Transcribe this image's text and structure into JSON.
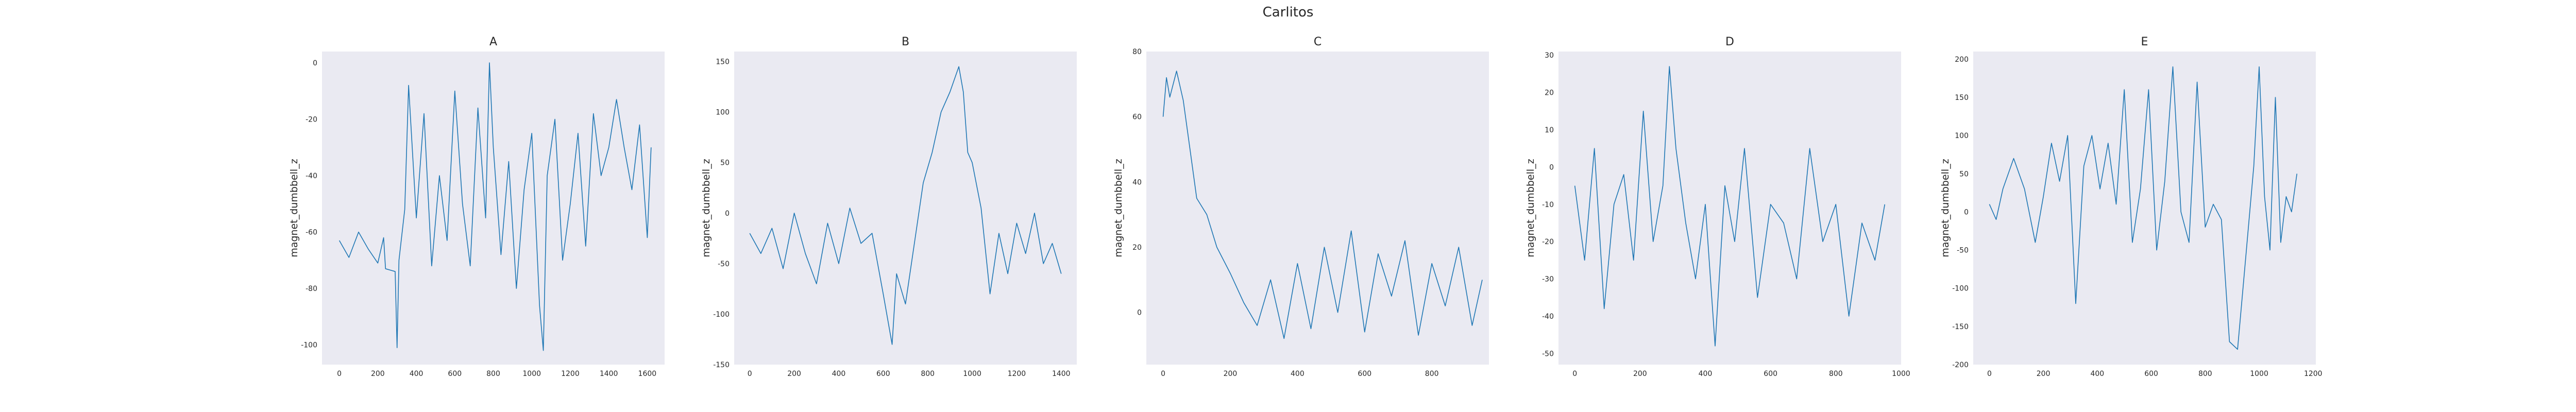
{
  "figure": {
    "title": "Carlitos",
    "background": "#ffffff",
    "axes_background": "#eaeaf2",
    "line_color": "#1f77b4"
  },
  "chart_data": [
    {
      "type": "line",
      "title": "A",
      "xlabel": "",
      "ylabel": "magnet_dumbbell_z",
      "xlim": [
        -90,
        1690
      ],
      "ylim": [
        -107,
        4
      ],
      "xticks": [
        0,
        200,
        400,
        600,
        800,
        1000,
        1200,
        1400,
        1600
      ],
      "yticks": [
        0,
        -20,
        -40,
        -60,
        -80,
        -100
      ],
      "grid": false,
      "x": [
        0,
        50,
        100,
        150,
        200,
        230,
        240,
        290,
        300,
        310,
        340,
        360,
        400,
        440,
        480,
        520,
        560,
        600,
        640,
        680,
        720,
        760,
        780,
        800,
        840,
        880,
        920,
        960,
        1000,
        1040,
        1060,
        1080,
        1120,
        1160,
        1200,
        1240,
        1280,
        1320,
        1360,
        1400,
        1440,
        1480,
        1520,
        1560,
        1600,
        1620
      ],
      "y": [
        -63,
        -69,
        -60,
        -66,
        -71,
        -62,
        -73,
        -74,
        -101,
        -70,
        -52,
        -8,
        -55,
        -18,
        -72,
        -40,
        -63,
        -10,
        -50,
        -72,
        -16,
        -55,
        0,
        -30,
        -68,
        -35,
        -80,
        -45,
        -25,
        -86,
        -102,
        -40,
        -20,
        -70,
        -50,
        -25,
        -65,
        -18,
        -40,
        -30,
        -13,
        -30,
        -45,
        -22,
        -62,
        -30
      ]
    },
    {
      "type": "line",
      "title": "B",
      "xlabel": "",
      "ylabel": "magnet_dumbbell_z",
      "xlim": [
        -70,
        1470
      ],
      "ylim": [
        -150,
        160
      ],
      "xticks": [
        0,
        200,
        400,
        600,
        800,
        1000,
        1200,
        1400
      ],
      "yticks": [
        150,
        100,
        50,
        0,
        -50,
        -100,
        -150
      ],
      "grid": false,
      "x": [
        0,
        50,
        100,
        150,
        200,
        250,
        300,
        350,
        400,
        450,
        500,
        550,
        600,
        640,
        660,
        700,
        740,
        780,
        820,
        860,
        900,
        940,
        960,
        980,
        1000,
        1040,
        1080,
        1120,
        1160,
        1200,
        1240,
        1280,
        1320,
        1360,
        1400
      ],
      "y": [
        -20,
        -40,
        -15,
        -55,
        0,
        -40,
        -70,
        -10,
        -50,
        5,
        -30,
        -20,
        -80,
        -130,
        -60,
        -90,
        -30,
        30,
        60,
        100,
        120,
        145,
        120,
        60,
        50,
        5,
        -80,
        -20,
        -60,
        -10,
        -40,
        0,
        -50,
        -30,
        -60
      ]
    },
    {
      "type": "line",
      "title": "C",
      "xlabel": "",
      "ylabel": "magnet_dumbbell_z",
      "xlim": [
        -50,
        970
      ],
      "ylim": [
        -16,
        80
      ],
      "xticks": [
        0,
        200,
        400,
        600,
        800
      ],
      "yticks": [
        80,
        60,
        40,
        20,
        0
      ],
      "grid": false,
      "x": [
        0,
        10,
        20,
        40,
        60,
        80,
        100,
        130,
        160,
        200,
        240,
        280,
        320,
        360,
        400,
        440,
        480,
        520,
        560,
        600,
        640,
        680,
        720,
        760,
        800,
        840,
        880,
        920,
        950
      ],
      "y": [
        60,
        72,
        66,
        74,
        65,
        50,
        35,
        30,
        20,
        12,
        3,
        -4,
        10,
        -8,
        15,
        -5,
        20,
        0,
        25,
        -6,
        18,
        5,
        22,
        -7,
        15,
        2,
        20,
        -4,
        10
      ]
    },
    {
      "type": "line",
      "title": "D",
      "xlabel": "",
      "ylabel": "magnet_dumbbell_z",
      "xlim": [
        -50,
        1000
      ],
      "ylim": [
        -53,
        31
      ],
      "xticks": [
        0,
        200,
        400,
        600,
        800,
        1000
      ],
      "yticks": [
        30,
        20,
        10,
        0,
        -10,
        -20,
        -30,
        -40,
        -50
      ],
      "grid": false,
      "x": [
        0,
        30,
        60,
        90,
        120,
        150,
        180,
        210,
        240,
        270,
        290,
        310,
        340,
        370,
        400,
        430,
        460,
        490,
        520,
        560,
        600,
        640,
        680,
        720,
        760,
        800,
        840,
        880,
        920,
        950
      ],
      "y": [
        -5,
        -25,
        5,
        -38,
        -10,
        -2,
        -25,
        15,
        -20,
        -5,
        27,
        5,
        -15,
        -30,
        -10,
        -48,
        -5,
        -20,
        5,
        -35,
        -10,
        -15,
        -30,
        5,
        -20,
        -10,
        -40,
        -15,
        -25,
        -10
      ]
    },
    {
      "type": "line",
      "title": "E",
      "xlabel": "",
      "ylabel": "magnet_dumbbell_z",
      "xlim": [
        -60,
        1210
      ],
      "ylim": [
        -200,
        210
      ],
      "xticks": [
        0,
        200,
        400,
        600,
        800,
        1000,
        1200
      ],
      "yticks": [
        200,
        150,
        100,
        50,
        0,
        -50,
        -100,
        -150,
        -200
      ],
      "grid": false,
      "x": [
        0,
        25,
        50,
        90,
        130,
        170,
        200,
        230,
        260,
        290,
        320,
        350,
        380,
        410,
        440,
        470,
        500,
        530,
        560,
        590,
        620,
        650,
        680,
        710,
        740,
        770,
        800,
        830,
        860,
        890,
        920,
        950,
        980,
        1000,
        1020,
        1040,
        1060,
        1080,
        1100,
        1120,
        1140
      ],
      "y": [
        10,
        -10,
        30,
        70,
        30,
        -40,
        20,
        90,
        40,
        100,
        -120,
        60,
        100,
        30,
        90,
        10,
        160,
        -40,
        30,
        160,
        -50,
        40,
        190,
        0,
        -40,
        170,
        -20,
        10,
        -10,
        -170,
        -180,
        -60,
        60,
        190,
        20,
        -50,
        150,
        -40,
        20,
        0,
        50
      ]
    }
  ]
}
